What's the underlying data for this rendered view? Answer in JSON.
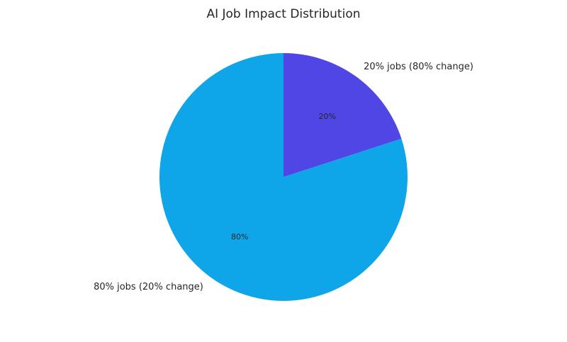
{
  "chart_data": {
    "type": "pie",
    "title": "AI Job Impact Distribution",
    "categories": [
      "20% jobs (80% change)",
      "80% jobs (20% change)"
    ],
    "values": [
      20,
      80
    ],
    "value_labels": [
      "20%",
      "80%"
    ],
    "colors": [
      "#4f46e5",
      "#0ea5e9"
    ]
  }
}
